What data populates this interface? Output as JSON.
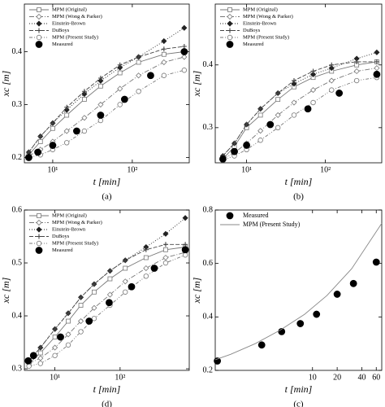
{
  "chart_data": [
    {
      "type": "line",
      "caption": "(a)",
      "x_label": "t [min]",
      "y_label": "xc [m]",
      "xlog": true,
      "legend": "upper left",
      "xlim": [
        4.4,
        520
      ],
      "ylim": [
        0.19,
        0.49
      ],
      "xticks": [
        {
          "value": 10,
          "label": "10¹"
        },
        {
          "value": 100,
          "label": "10²"
        }
      ],
      "yticks": [
        0.2,
        0.3,
        0.4
      ],
      "series": [
        {
          "name": "MPM (Original)",
          "color": "#777777",
          "dash": "",
          "marker": "square-open",
          "line": true,
          "x": [
            5,
            7,
            10,
            15,
            25,
            40,
            70,
            120,
            250,
            450
          ],
          "values": [
            0.205,
            0.23,
            0.255,
            0.28,
            0.31,
            0.335,
            0.36,
            0.38,
            0.395,
            0.4
          ]
        },
        {
          "name": "MPM (Wong & Parker)",
          "color": "#777777",
          "dash": "6 2 1 2",
          "marker": "diamond-open",
          "line": true,
          "x": [
            5,
            7,
            10,
            15,
            25,
            40,
            70,
            120,
            250,
            450
          ],
          "values": [
            0.203,
            0.215,
            0.23,
            0.25,
            0.275,
            0.3,
            0.33,
            0.355,
            0.38,
            0.39
          ]
        },
        {
          "name": "Einstein-Brown",
          "color": "#222222",
          "dash": "1 2",
          "marker": "diamond",
          "line": true,
          "x": [
            5,
            7,
            10,
            15,
            25,
            40,
            70,
            120,
            250,
            450
          ],
          "values": [
            0.21,
            0.24,
            0.265,
            0.29,
            0.32,
            0.345,
            0.37,
            0.39,
            0.42,
            0.445
          ]
        },
        {
          "name": "DuBoys",
          "color": "#444444",
          "dash": "5 2",
          "marker": "plus",
          "line": true,
          "x": [
            5,
            7,
            10,
            15,
            25,
            40,
            70,
            120,
            250,
            450
          ],
          "values": [
            0.21,
            0.24,
            0.265,
            0.295,
            0.325,
            0.35,
            0.375,
            0.39,
            0.405,
            0.41
          ]
        },
        {
          "name": "MPM (Present Study)",
          "color": "#777777",
          "dash": "4 2 1 2 1 2",
          "marker": "circle-open",
          "line": true,
          "x": [
            5,
            7,
            10,
            15,
            25,
            40,
            70,
            120,
            250,
            450
          ],
          "values": [
            0.2,
            0.205,
            0.215,
            0.228,
            0.25,
            0.27,
            0.3,
            0.325,
            0.355,
            0.365
          ]
        },
        {
          "name": "Measured",
          "color": "#000000",
          "dash": "",
          "marker": "circle",
          "line": false,
          "x": [
            5,
            6.5,
            10,
            20,
            40,
            80,
            170,
            450
          ],
          "values": [
            0.2,
            0.21,
            0.223,
            0.25,
            0.28,
            0.31,
            0.355,
            0.4
          ]
        }
      ]
    },
    {
      "type": "line",
      "caption": "(b)",
      "x_label": "t [min]",
      "y_label": "xc [m]",
      "xlog": true,
      "legend": "upper left",
      "xlim": [
        4,
        520
      ],
      "ylim": [
        0.244,
        0.497
      ],
      "xticks": [
        {
          "value": 10,
          "label": "10¹"
        },
        {
          "value": 100,
          "label": "10²"
        }
      ],
      "yticks": [
        0.3,
        0.4
      ],
      "series": [
        {
          "name": "MPM (Original)",
          "color": "#777777",
          "dash": "",
          "marker": "square-open",
          "line": true,
          "x": [
            5,
            7,
            10,
            15,
            25,
            40,
            70,
            120,
            250,
            450
          ],
          "values": [
            0.25,
            0.27,
            0.3,
            0.32,
            0.345,
            0.365,
            0.38,
            0.39,
            0.4,
            0.405
          ]
        },
        {
          "name": "MPM (Wong & Parker)",
          "color": "#777777",
          "dash": "6 2 1 2",
          "marker": "diamond-open",
          "line": true,
          "x": [
            5,
            7,
            10,
            15,
            25,
            40,
            70,
            120,
            250,
            450
          ],
          "values": [
            0.25,
            0.26,
            0.275,
            0.295,
            0.32,
            0.34,
            0.36,
            0.375,
            0.39,
            0.395
          ]
        },
        {
          "name": "Einstein-Brown",
          "color": "#222222",
          "dash": "1 2",
          "marker": "diamond",
          "line": true,
          "x": [
            5,
            7,
            10,
            15,
            25,
            40,
            70,
            120,
            250,
            450
          ],
          "values": [
            0.255,
            0.275,
            0.305,
            0.33,
            0.355,
            0.37,
            0.385,
            0.395,
            0.41,
            0.42
          ]
        },
        {
          "name": "DuBoys",
          "color": "#444444",
          "dash": "5 2",
          "marker": "plus",
          "line": true,
          "x": [
            5,
            7,
            10,
            15,
            25,
            40,
            70,
            120,
            250,
            450
          ],
          "values": [
            0.255,
            0.275,
            0.305,
            0.33,
            0.355,
            0.375,
            0.39,
            0.4,
            0.405,
            0.405
          ]
        },
        {
          "name": "MPM (Present Study)",
          "color": "#777777",
          "dash": "4 2 1 2 1 2",
          "marker": "circle-open",
          "line": true,
          "x": [
            5,
            7,
            10,
            15,
            25,
            40,
            70,
            120,
            250,
            450
          ],
          "values": [
            0.248,
            0.255,
            0.265,
            0.28,
            0.3,
            0.32,
            0.34,
            0.36,
            0.375,
            0.38
          ]
        },
        {
          "name": "Measured",
          "color": "#000000",
          "dash": "",
          "marker": "circle",
          "line": false,
          "x": [
            5,
            7,
            10,
            20,
            60,
            150,
            450
          ],
          "values": [
            0.25,
            0.262,
            0.272,
            0.305,
            0.33,
            0.355,
            0.385
          ]
        }
      ]
    },
    {
      "type": "line",
      "caption": "(d)",
      "x_label": "t [min]",
      "y_label": "xc [m]",
      "xlog": true,
      "legend": "upper left",
      "xlim": [
        3.4,
        1150
      ],
      "ylim": [
        0.297,
        0.6
      ],
      "xticks": [
        {
          "value": 10,
          "label": "10¹"
        },
        {
          "value": 100,
          "label": "10²"
        }
      ],
      "yticks": [
        0.3,
        0.4,
        0.5,
        0.6
      ],
      "series": [
        {
          "name": "MPM (Original)",
          "color": "#777777",
          "dash": "",
          "marker": "square-open",
          "line": true,
          "x": [
            4,
            6,
            10,
            16,
            25,
            40,
            70,
            120,
            250,
            500,
            1000
          ],
          "values": [
            0.31,
            0.33,
            0.36,
            0.39,
            0.42,
            0.445,
            0.47,
            0.49,
            0.51,
            0.525,
            0.53
          ]
        },
        {
          "name": "MPM (Wong & Parker)",
          "color": "#777777",
          "dash": "6 2 1 2",
          "marker": "diamond-open",
          "line": true,
          "x": [
            4,
            6,
            10,
            16,
            25,
            40,
            70,
            120,
            250,
            500,
            1000
          ],
          "values": [
            0.31,
            0.32,
            0.34,
            0.365,
            0.39,
            0.415,
            0.44,
            0.465,
            0.49,
            0.51,
            0.52
          ]
        },
        {
          "name": "Einstein-Brown",
          "color": "#222222",
          "dash": "1 2",
          "marker": "diamond",
          "line": true,
          "x": [
            4,
            6,
            10,
            16,
            25,
            40,
            70,
            120,
            250,
            500,
            1000
          ],
          "values": [
            0.315,
            0.34,
            0.375,
            0.405,
            0.435,
            0.46,
            0.485,
            0.505,
            0.53,
            0.555,
            0.585
          ]
        },
        {
          "name": "DuBoys",
          "color": "#444444",
          "dash": "5 2",
          "marker": "plus",
          "line": true,
          "x": [
            4,
            6,
            10,
            16,
            25,
            40,
            70,
            120,
            250,
            500,
            1000
          ],
          "values": [
            0.315,
            0.34,
            0.375,
            0.405,
            0.435,
            0.46,
            0.485,
            0.505,
            0.525,
            0.535,
            0.535
          ]
        },
        {
          "name": "MPM (Present Study)",
          "color": "#777777",
          "dash": "4 2 1 2 1 2",
          "marker": "circle-open",
          "line": true,
          "x": [
            4,
            6,
            10,
            16,
            25,
            40,
            70,
            120,
            250,
            500,
            1000
          ],
          "values": [
            0.305,
            0.31,
            0.325,
            0.345,
            0.37,
            0.395,
            0.42,
            0.445,
            0.475,
            0.5,
            0.515
          ]
        },
        {
          "name": "Measured",
          "color": "#000000",
          "dash": "",
          "marker": "circle",
          "line": false,
          "x": [
            3.9,
            4.7,
            12.2,
            33.5,
            68,
            150,
            335,
            1000
          ],
          "values": [
            0.315,
            0.325,
            0.36,
            0.39,
            0.425,
            0.455,
            0.49,
            0.525
          ]
        }
      ]
    },
    {
      "type": "line",
      "caption": "(c)",
      "x_label": "t [min]",
      "y_label": "xc [m]",
      "xlog": true,
      "legend": "upper left",
      "xlim": [
        0.65,
        70
      ],
      "ylim": [
        0.2,
        0.8
      ],
      "xticks": [
        10,
        20,
        40,
        60
      ],
      "yticks": [
        0.2,
        0.4,
        0.6,
        0.8
      ],
      "series": [
        {
          "name": "Measured",
          "color": "#000000",
          "dash": "",
          "marker": "circle",
          "line": false,
          "x": [
            0.69,
            2.4,
            4.2,
            7.1,
            11.2,
            20,
            31.6,
            60
          ],
          "values": [
            0.235,
            0.295,
            0.345,
            0.375,
            0.41,
            0.485,
            0.525,
            0.605
          ]
        },
        {
          "name": "MPM (Present Study)",
          "color": "#888888",
          "dash": "",
          "marker": "none",
          "line": true,
          "x": [
            0.65,
            1,
            2,
            4,
            8,
            15,
            30,
            70
          ],
          "values": [
            0.24,
            0.26,
            0.3,
            0.35,
            0.41,
            0.48,
            0.58,
            0.75
          ]
        }
      ]
    }
  ]
}
